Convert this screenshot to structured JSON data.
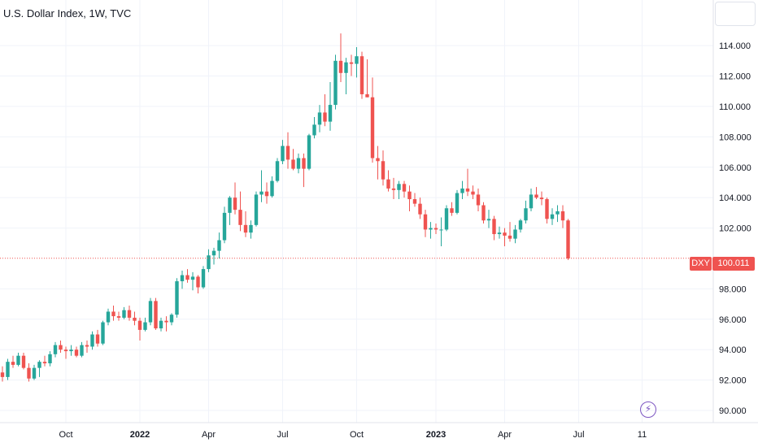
{
  "title": "U.S. Dollar Index, 1W, TVC",
  "symbol_label": "DXY",
  "last_price_label": "100.011",
  "colors": {
    "up": "#26a69a",
    "down": "#ef5350",
    "last_line": "#ef5350",
    "grid": "#f0f3fa",
    "flash": "#7e57c2"
  },
  "icons": {
    "flash": "lightning-icon"
  },
  "chart_data": {
    "type": "candlestick",
    "title": "U.S. Dollar Index, 1W, TVC",
    "ylim": [
      89.2,
      117.0
    ],
    "y_ticks": [
      "92.000",
      "94.000",
      "96.000",
      "98.000",
      "102.000",
      "104.000",
      "106.000",
      "108.000",
      "110.000",
      "112.000",
      "114.000",
      "90.000"
    ],
    "y_tick_values": [
      92,
      94,
      96,
      98,
      102,
      104,
      106,
      108,
      110,
      112,
      114,
      90
    ],
    "x_ticks": [
      {
        "label": "Oct",
        "index": 12,
        "bold": false
      },
      {
        "label": "2022",
        "index": 26,
        "bold": true
      },
      {
        "label": "Apr",
        "index": 39,
        "bold": false
      },
      {
        "label": "Jul",
        "index": 53,
        "bold": false
      },
      {
        "label": "Oct",
        "index": 67,
        "bold": false
      },
      {
        "label": "2023",
        "index": 82,
        "bold": true
      },
      {
        "label": "Apr",
        "index": 95,
        "bold": false
      },
      {
        "label": "Jul",
        "index": 109,
        "bold": false
      },
      {
        "label": "11",
        "index": 121,
        "bold": false
      }
    ],
    "last_value": 100.011,
    "series": [
      [
        92.5,
        92.9,
        91.9,
        92.2
      ],
      [
        92.2,
        93.4,
        92.0,
        93.2
      ],
      [
        93.2,
        93.6,
        92.8,
        93.0
      ],
      [
        93.0,
        93.8,
        92.9,
        93.6
      ],
      [
        93.6,
        93.8,
        92.7,
        92.8
      ],
      [
        92.8,
        93.1,
        91.9,
        92.1
      ],
      [
        92.1,
        93.0,
        92.0,
        92.8
      ],
      [
        92.8,
        93.3,
        92.2,
        93.2
      ],
      [
        93.2,
        93.6,
        92.9,
        93.1
      ],
      [
        93.1,
        93.9,
        92.9,
        93.7
      ],
      [
        93.7,
        94.5,
        93.5,
        94.3
      ],
      [
        94.3,
        94.6,
        93.8,
        94.0
      ],
      [
        94.0,
        94.2,
        93.4,
        93.9
      ],
      [
        93.9,
        94.3,
        93.6,
        94.0
      ],
      [
        94.0,
        94.2,
        93.5,
        93.6
      ],
      [
        93.6,
        94.5,
        93.5,
        94.3
      ],
      [
        94.3,
        94.6,
        93.8,
        94.2
      ],
      [
        94.2,
        95.2,
        94.0,
        95.0
      ],
      [
        95.0,
        95.3,
        94.2,
        94.4
      ],
      [
        94.4,
        95.9,
        94.3,
        95.8
      ],
      [
        95.8,
        96.7,
        95.6,
        96.5
      ],
      [
        96.5,
        96.9,
        95.9,
        96.2
      ],
      [
        96.2,
        96.5,
        95.9,
        96.1
      ],
      [
        96.1,
        96.8,
        96.0,
        96.6
      ],
      [
        96.6,
        96.9,
        95.9,
        96.1
      ],
      [
        96.1,
        96.5,
        95.6,
        95.9
      ],
      [
        95.9,
        96.1,
        94.6,
        95.3
      ],
      [
        95.3,
        96.1,
        95.2,
        95.8
      ],
      [
        95.8,
        97.4,
        95.6,
        97.2
      ],
      [
        97.2,
        97.4,
        95.3,
        95.4
      ],
      [
        95.4,
        96.1,
        95.2,
        95.9
      ],
      [
        95.9,
        96.2,
        95.2,
        95.8
      ],
      [
        95.8,
        96.4,
        95.6,
        96.3
      ],
      [
        96.3,
        98.7,
        96.1,
        98.5
      ],
      [
        98.5,
        99.2,
        98.0,
        98.9
      ],
      [
        98.9,
        99.3,
        98.4,
        98.6
      ],
      [
        98.6,
        99.1,
        97.9,
        98.8
      ],
      [
        98.8,
        98.9,
        97.7,
        98.1
      ],
      [
        98.1,
        99.5,
        98.0,
        99.3
      ],
      [
        99.3,
        100.6,
        99.1,
        100.2
      ],
      [
        100.2,
        100.7,
        99.6,
        100.5
      ],
      [
        100.5,
        101.7,
        100.0,
        101.2
      ],
      [
        101.2,
        103.4,
        101.0,
        103.0
      ],
      [
        103.0,
        104.1,
        102.2,
        104.0
      ],
      [
        104.0,
        105.0,
        102.9,
        103.2
      ],
      [
        103.2,
        104.4,
        101.8,
        102.2
      ],
      [
        102.2,
        103.1,
        101.4,
        101.7
      ],
      [
        101.7,
        102.5,
        101.3,
        102.2
      ],
      [
        102.2,
        104.4,
        102.1,
        104.2
      ],
      [
        104.2,
        105.8,
        103.7,
        104.4
      ],
      [
        104.4,
        105.0,
        103.6,
        104.1
      ],
      [
        104.1,
        105.4,
        104.0,
        105.1
      ],
      [
        105.1,
        106.6,
        105.0,
        106.4
      ],
      [
        106.4,
        107.8,
        106.2,
        107.4
      ],
      [
        107.4,
        108.3,
        105.9,
        106.5
      ],
      [
        106.5,
        107.2,
        105.8,
        105.9
      ],
      [
        105.9,
        106.9,
        105.6,
        106.6
      ],
      [
        106.6,
        106.9,
        104.7,
        105.9
      ],
      [
        105.9,
        108.2,
        105.8,
        108.1
      ],
      [
        108.1,
        109.3,
        107.9,
        108.8
      ],
      [
        108.8,
        110.1,
        108.3,
        109.6
      ],
      [
        109.6,
        110.8,
        108.7,
        109.0
      ],
      [
        109.0,
        111.6,
        108.4,
        110.1
      ],
      [
        110.1,
        113.4,
        109.8,
        113.0
      ],
      [
        113.0,
        114.8,
        111.6,
        112.2
      ],
      [
        112.2,
        113.2,
        110.8,
        112.9
      ],
      [
        112.9,
        113.4,
        112.0,
        112.8
      ],
      [
        112.8,
        113.9,
        111.9,
        113.3
      ],
      [
        113.3,
        113.6,
        110.5,
        110.8
      ],
      [
        110.8,
        113.1,
        110.6,
        110.6
      ],
      [
        110.6,
        111.9,
        106.3,
        106.6
      ],
      [
        106.6,
        107.4,
        105.2,
        106.4
      ],
      [
        106.4,
        107.1,
        104.8,
        105.2
      ],
      [
        105.2,
        105.8,
        104.4,
        104.6
      ],
      [
        104.6,
        105.3,
        103.9,
        104.5
      ],
      [
        104.5,
        105.1,
        103.9,
        104.9
      ],
      [
        104.9,
        105.1,
        104.0,
        104.4
      ],
      [
        104.4,
        104.8,
        103.1,
        103.9
      ],
      [
        103.9,
        104.3,
        103.4,
        103.6
      ],
      [
        103.6,
        104.0,
        102.6,
        102.9
      ],
      [
        102.9,
        103.2,
        101.4,
        101.9
      ],
      [
        101.9,
        102.4,
        101.3,
        102.0
      ],
      [
        102.0,
        102.3,
        101.6,
        101.9
      ],
      [
        101.9,
        102.7,
        100.8,
        101.9
      ],
      [
        101.9,
        103.5,
        101.8,
        103.3
      ],
      [
        103.3,
        103.7,
        102.8,
        103.0
      ],
      [
        103.0,
        104.5,
        102.9,
        104.3
      ],
      [
        104.3,
        105.1,
        103.9,
        104.6
      ],
      [
        104.6,
        105.9,
        104.1,
        104.4
      ],
      [
        104.4,
        104.8,
        103.9,
        104.2
      ],
      [
        104.2,
        104.6,
        103.1,
        103.5
      ],
      [
        103.5,
        103.7,
        102.3,
        102.5
      ],
      [
        102.5,
        103.2,
        102.0,
        102.6
      ],
      [
        102.6,
        102.8,
        101.2,
        101.6
      ],
      [
        101.6,
        102.1,
        101.3,
        101.7
      ],
      [
        101.7,
        102.0,
        100.8,
        101.5
      ],
      [
        101.5,
        102.4,
        101.1,
        101.3
      ],
      [
        101.3,
        102.2,
        101.0,
        101.9
      ],
      [
        101.9,
        102.6,
        101.7,
        102.5
      ],
      [
        102.5,
        103.8,
        102.3,
        103.3
      ],
      [
        103.3,
        104.6,
        103.1,
        104.2
      ],
      [
        104.2,
        104.7,
        103.9,
        104.0
      ],
      [
        104.0,
        104.4,
        103.5,
        103.9
      ],
      [
        103.9,
        104.0,
        102.3,
        102.6
      ],
      [
        102.6,
        103.3,
        102.2,
        102.9
      ],
      [
        102.9,
        103.5,
        102.4,
        103.1
      ],
      [
        103.1,
        103.5,
        102.0,
        102.5
      ],
      [
        102.5,
        102.6,
        99.9,
        100.0
      ]
    ]
  }
}
